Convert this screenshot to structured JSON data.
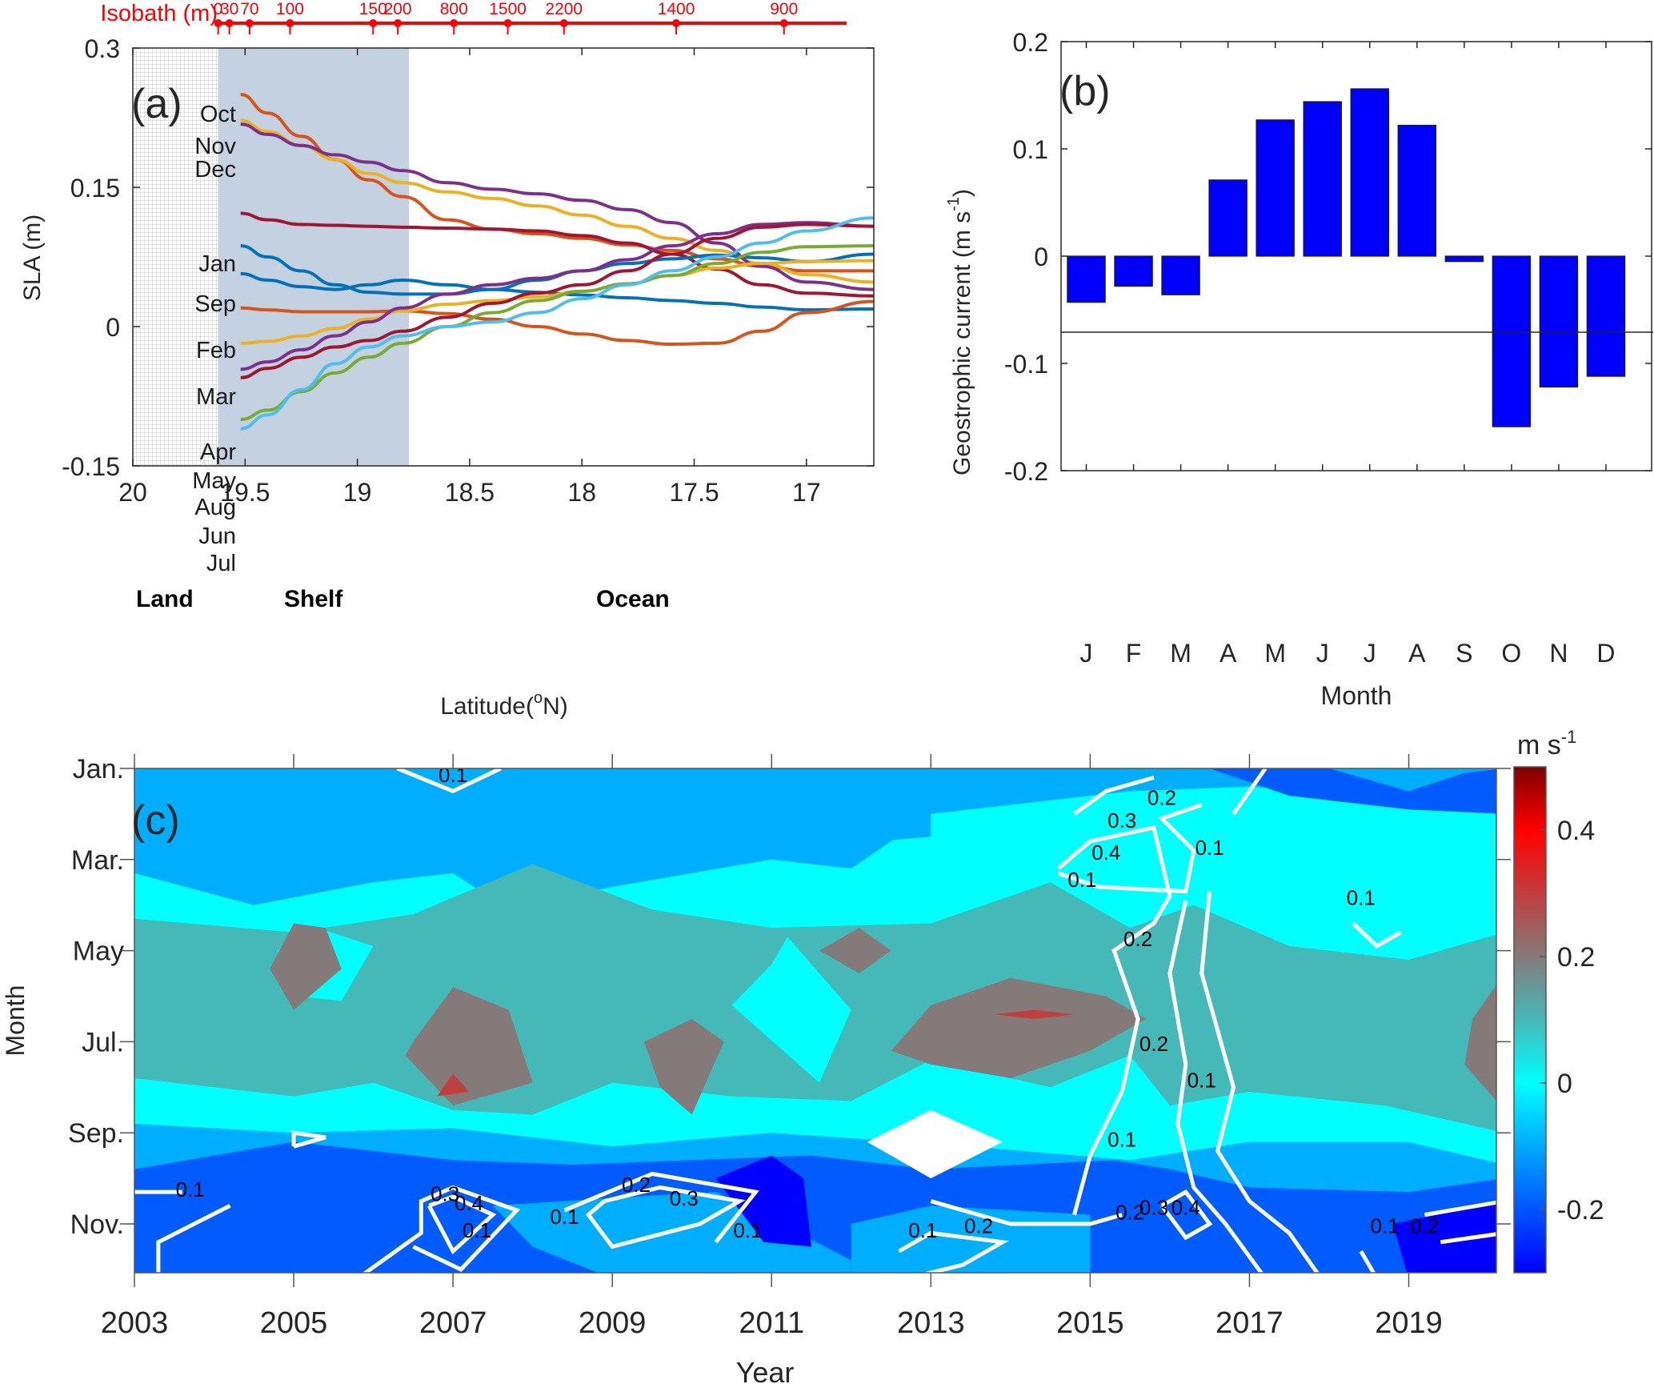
{
  "chart_data": [
    {
      "panel": "a",
      "type": "line",
      "panel_label": "(a)",
      "xlabel": "Latitude(°N)",
      "xlabel_main": "Latitude(",
      "xlabel_sup": "o",
      "xlabel_end": "N)",
      "ylabel": "SLA (m)",
      "xlim": [
        20,
        16.7
      ],
      "ylim": [
        -0.15,
        0.3
      ],
      "xticks": [
        20,
        19.5,
        19,
        18.5,
        18,
        17.5,
        17
      ],
      "xtick_labels": [
        "20",
        "19.5",
        "19",
        "18.5",
        "18",
        "17.5",
        "17"
      ],
      "yticks": [
        0.3,
        0.15,
        0,
        -0.15
      ],
      "ytick_labels": [
        "0.3",
        "0.15",
        "0",
        "-0.15"
      ],
      "regions": [
        {
          "name": "Land",
          "from": 20,
          "to": 19.62,
          "fill": "grid"
        },
        {
          "name": "Shelf",
          "from": 19.62,
          "to": 18.77,
          "fill": "#c3d1e0"
        },
        {
          "name": "Ocean",
          "from": 18.77,
          "to": 16.7,
          "fill": "none"
        }
      ],
      "isobath": {
        "title": "Isobath (m)",
        "color": "#ff0000",
        "marks": [
          {
            "depth": "0",
            "lat": 19.62
          },
          {
            "depth": "30",
            "lat": 19.57
          },
          {
            "depth": "70",
            "lat": 19.48
          },
          {
            "depth": "100",
            "lat": 19.3
          },
          {
            "depth": "150",
            "lat": 18.93
          },
          {
            "depth": "200",
            "lat": 18.82
          },
          {
            "depth": "800",
            "lat": 18.57
          },
          {
            "depth": "1500",
            "lat": 18.33
          },
          {
            "depth": "2200",
            "lat": 18.08
          },
          {
            "depth": "1400",
            "lat": 17.58
          },
          {
            "depth": "900",
            "lat": 17.1
          }
        ]
      },
      "series": [
        {
          "name": "Oct",
          "color": "#d95319",
          "x": [
            19.52,
            19.4,
            19.25,
            19.1,
            18.95,
            18.8,
            18.6,
            18.4,
            18.2,
            18.0,
            17.8,
            17.6,
            17.4,
            17.2,
            17.0,
            16.7
          ],
          "y": [
            0.25,
            0.23,
            0.205,
            0.18,
            0.158,
            0.14,
            0.115,
            0.105,
            0.1,
            0.095,
            0.088,
            0.082,
            0.073,
            0.065,
            0.06,
            0.06
          ]
        },
        {
          "name": "Nov",
          "color": "#edb120",
          "x": [
            19.52,
            19.4,
            19.25,
            19.1,
            18.95,
            18.8,
            18.6,
            18.4,
            18.2,
            18.0,
            17.8,
            17.6,
            17.4,
            17.2,
            17.0,
            16.7
          ],
          "y": [
            0.222,
            0.21,
            0.195,
            0.18,
            0.165,
            0.155,
            0.145,
            0.138,
            0.13,
            0.12,
            0.108,
            0.095,
            0.082,
            0.068,
            0.056,
            0.048
          ]
        },
        {
          "name": "Dec",
          "color": "#7e2f8e",
          "x": [
            19.52,
            19.4,
            19.25,
            19.1,
            18.95,
            18.8,
            18.6,
            18.4,
            18.2,
            18.0,
            17.8,
            17.6,
            17.4,
            17.2,
            17.0,
            16.7
          ],
          "y": [
            0.218,
            0.207,
            0.195,
            0.185,
            0.177,
            0.168,
            0.155,
            0.148,
            0.143,
            0.136,
            0.126,
            0.112,
            0.09,
            0.065,
            0.048,
            0.04
          ]
        },
        {
          "name": "Jan",
          "color": "#a2142f",
          "x": [
            19.52,
            19.4,
            19.25,
            19.1,
            18.95,
            18.8,
            18.6,
            18.4,
            18.2,
            18.0,
            17.8,
            17.6,
            17.4,
            17.2,
            17.0,
            16.7
          ],
          "y": [
            0.122,
            0.115,
            0.11,
            0.109,
            0.108,
            0.107,
            0.106,
            0.105,
            0.103,
            0.098,
            0.09,
            0.078,
            0.062,
            0.045,
            0.036,
            0.033
          ]
        },
        {
          "name": "Sep",
          "color": "#0072bd",
          "x": [
            19.52,
            19.4,
            19.25,
            19.1,
            18.95,
            18.8,
            18.6,
            18.4,
            18.2,
            18.0,
            17.8,
            17.6,
            17.4,
            17.2,
            17.0,
            16.7
          ],
          "y": [
            0.087,
            0.075,
            0.06,
            0.045,
            0.037,
            0.035,
            0.035,
            0.04,
            0.05,
            0.06,
            0.068,
            0.073,
            0.077,
            0.074,
            0.07,
            0.078
          ]
        },
        {
          "name": "Feb",
          "color": "#0072bd",
          "x": [
            19.52,
            19.4,
            19.25,
            19.1,
            18.95,
            18.8,
            18.6,
            18.4,
            18.2,
            18.0,
            17.8,
            17.6,
            17.4,
            17.2,
            17.0,
            16.7
          ],
          "y": [
            0.057,
            0.05,
            0.043,
            0.04,
            0.045,
            0.05,
            0.045,
            0.04,
            0.037,
            0.034,
            0.031,
            0.028,
            0.025,
            0.021,
            0.018,
            0.019
          ]
        },
        {
          "name": "Mar",
          "color": "#d95319",
          "x": [
            19.52,
            19.4,
            19.25,
            19.1,
            18.95,
            18.8,
            18.6,
            18.4,
            18.2,
            18.0,
            17.8,
            17.6,
            17.4,
            17.2,
            17.0,
            16.7
          ],
          "y": [
            0.02,
            0.018,
            0.016,
            0.016,
            0.016,
            0.017,
            0.014,
            0.008,
            0.0,
            -0.008,
            -0.015,
            -0.019,
            -0.018,
            -0.005,
            0.015,
            0.027
          ]
        },
        {
          "name": "Apr",
          "color": "#edb120",
          "x": [
            19.52,
            19.4,
            19.25,
            19.1,
            18.95,
            18.8,
            18.6,
            18.4,
            18.2,
            18.0,
            17.8,
            17.6,
            17.4,
            17.2,
            17.0,
            16.7
          ],
          "y": [
            -0.018,
            -0.016,
            -0.01,
            -0.002,
            0.008,
            0.017,
            0.024,
            0.028,
            0.032,
            0.038,
            0.046,
            0.055,
            0.063,
            0.068,
            0.07,
            0.071
          ]
        },
        {
          "name": "May",
          "color": "#7e2f8e",
          "x": [
            19.52,
            19.4,
            19.25,
            19.1,
            18.95,
            18.8,
            18.6,
            18.4,
            18.2,
            18.0,
            17.8,
            17.6,
            17.4,
            17.2,
            17.0,
            16.7
          ],
          "y": [
            -0.046,
            -0.038,
            -0.025,
            -0.01,
            0.005,
            0.02,
            0.035,
            0.045,
            0.052,
            0.06,
            0.072,
            0.087,
            0.1,
            0.11,
            0.112,
            0.108
          ]
        },
        {
          "name": "Aug",
          "color": "#a2142f",
          "x": [
            19.52,
            19.4,
            19.25,
            19.1,
            18.95,
            18.8,
            18.6,
            18.4,
            18.2,
            18.0,
            17.8,
            17.6,
            17.4,
            17.2,
            17.0,
            16.7
          ],
          "y": [
            -0.055,
            -0.045,
            -0.033,
            -0.022,
            -0.015,
            -0.005,
            0.01,
            0.025,
            0.036,
            0.045,
            0.06,
            0.078,
            0.095,
            0.107,
            0.11,
            0.108
          ]
        },
        {
          "name": "Jun",
          "color": "#77ac30",
          "x": [
            19.52,
            19.4,
            19.25,
            19.1,
            18.95,
            18.8,
            18.6,
            18.4,
            18.2,
            18.0,
            17.8,
            17.6,
            17.4,
            17.2,
            17.0,
            16.7
          ],
          "y": [
            -0.1,
            -0.09,
            -0.07,
            -0.05,
            -0.033,
            -0.018,
            0.0,
            0.015,
            0.028,
            0.038,
            0.046,
            0.055,
            0.068,
            0.08,
            0.086,
            0.087
          ]
        },
        {
          "name": "Jul",
          "color": "#4dbeee",
          "x": [
            19.52,
            19.4,
            19.25,
            19.1,
            18.95,
            18.8,
            18.6,
            18.4,
            18.2,
            18.0,
            17.8,
            17.6,
            17.4,
            17.2,
            17.0,
            16.7
          ],
          "y": [
            -0.11,
            -0.095,
            -0.068,
            -0.04,
            -0.022,
            -0.01,
            0.0,
            0.005,
            0.015,
            0.03,
            0.045,
            0.06,
            0.075,
            0.09,
            0.103,
            0.117
          ]
        }
      ],
      "label_order": [
        "Oct",
        "Nov",
        "Dec",
        "Jan",
        "Sep",
        "Feb",
        "Mar",
        "Apr",
        "May",
        "Aug",
        "Jun",
        "Jul"
      ]
    },
    {
      "panel": "b",
      "type": "bar",
      "panel_label": "(b)",
      "xlabel": "Month",
      "ylabel": "Geostrophic current (m s",
      "ylabel_sup": "-1",
      "ylabel_end": ")",
      "categories": [
        "J",
        "F",
        "M",
        "A",
        "M",
        "J",
        "J",
        "A",
        "S",
        "O",
        "N",
        "D"
      ],
      "values": [
        -0.043,
        -0.028,
        -0.036,
        0.071,
        0.127,
        0.144,
        0.156,
        0.122,
        -0.005,
        -0.159,
        -0.122,
        -0.112
      ],
      "ylim": [
        -0.2,
        0.2
      ],
      "yticks": [
        0.2,
        0.1,
        0,
        -0.1,
        -0.2
      ],
      "ytick_labels": [
        "0.2",
        "0.1",
        "0",
        "-0.1",
        "-0.2"
      ],
      "bar_color": "#0000ff"
    },
    {
      "panel": "c",
      "type": "heatmap",
      "panel_label": "(c)",
      "xlabel": "Year",
      "ylabel": "Month",
      "xlim": [
        2003,
        2020.1
      ],
      "xticks": [
        2003,
        2005,
        2007,
        2009,
        2011,
        2013,
        2015,
        2017,
        2019
      ],
      "xtick_labels": [
        "2003",
        "2005",
        "2007",
        "2009",
        "2011",
        "2013",
        "2015",
        "2017",
        "2019"
      ],
      "yticks": [
        1,
        3,
        5,
        7,
        9,
        11
      ],
      "ytick_labels": [
        "Jan.",
        "Mar.",
        "May",
        "Jul.",
        "Sep.",
        "Nov."
      ],
      "ylim": [
        1,
        12
      ],
      "colorbar": {
        "title": "m s",
        "title_sup": "-1",
        "range": [
          -0.3,
          0.5
        ],
        "ticks": [
          0.4,
          0.2,
          0,
          -0.2
        ],
        "tick_labels": [
          "0.4",
          "0.2",
          "0",
          "-0.2"
        ],
        "stops": [
          {
            "v": -0.3,
            "color": "#0000ff"
          },
          {
            "v": -0.1,
            "color": "#00aaff"
          },
          {
            "v": 0.0,
            "color": "#00ffff"
          },
          {
            "v": 0.1,
            "color": "#45b8b8"
          },
          {
            "v": 0.2,
            "color": "#857a7a"
          },
          {
            "v": 0.4,
            "color": "#ff0000"
          },
          {
            "v": 0.5,
            "color": "#7f0000"
          }
        ]
      },
      "level_colors": {
        "-0.3": "#0000ff",
        "-0.2": "#005cff",
        "-0.1": "#00aeff",
        "0.0": "#00ffff",
        "0.1": "#45b8b8",
        "0.2": "#857a7a",
        "0.3": "#c04040"
      },
      "contour_labels": [
        {
          "text": "0.1",
          "year": 2007.0,
          "month": 1.3
        },
        {
          "text": "0.1",
          "year": 2003.7,
          "month": 10.4
        },
        {
          "text": "0.3",
          "year": 2006.9,
          "month": 10.5
        },
        {
          "text": "0.4",
          "year": 2007.2,
          "month": 10.7
        },
        {
          "text": "0.1",
          "year": 2007.3,
          "month": 11.3
        },
        {
          "text": "0.2",
          "year": 2009.3,
          "month": 10.3
        },
        {
          "text": "0.3",
          "year": 2009.9,
          "month": 10.6
        },
        {
          "text": "0.1",
          "year": 2008.4,
          "month": 11.0
        },
        {
          "text": "0.1",
          "year": 2010.7,
          "month": 11.3
        },
        {
          "text": "0.1",
          "year": 2012.9,
          "month": 11.3
        },
        {
          "text": "0.2",
          "year": 2013.6,
          "month": 11.2
        },
        {
          "text": "0.2",
          "year": 2015.9,
          "month": 1.8
        },
        {
          "text": "0.3",
          "year": 2015.4,
          "month": 2.3
        },
        {
          "text": "0.4",
          "year": 2015.2,
          "month": 3.0
        },
        {
          "text": "0.1",
          "year": 2014.9,
          "month": 3.6
        },
        {
          "text": "0.1",
          "year": 2016.5,
          "month": 2.9
        },
        {
          "text": "0.2",
          "year": 2015.6,
          "month": 4.9
        },
        {
          "text": "0.2",
          "year": 2015.8,
          "month": 7.2
        },
        {
          "text": "0.1",
          "year": 2016.4,
          "month": 8.0
        },
        {
          "text": "0.1",
          "year": 2015.4,
          "month": 9.3
        },
        {
          "text": "0.2",
          "year": 2015.5,
          "month": 10.9
        },
        {
          "text": "0.3",
          "year": 2015.8,
          "month": 10.8
        },
        {
          "text": "0.4",
          "year": 2016.2,
          "month": 10.8
        },
        {
          "text": "0.1",
          "year": 2018.4,
          "month": 4.0
        },
        {
          "text": "0.1",
          "year": 2018.7,
          "month": 11.2
        },
        {
          "text": "0.2",
          "year": 2019.2,
          "month": 11.2
        }
      ]
    }
  ]
}
